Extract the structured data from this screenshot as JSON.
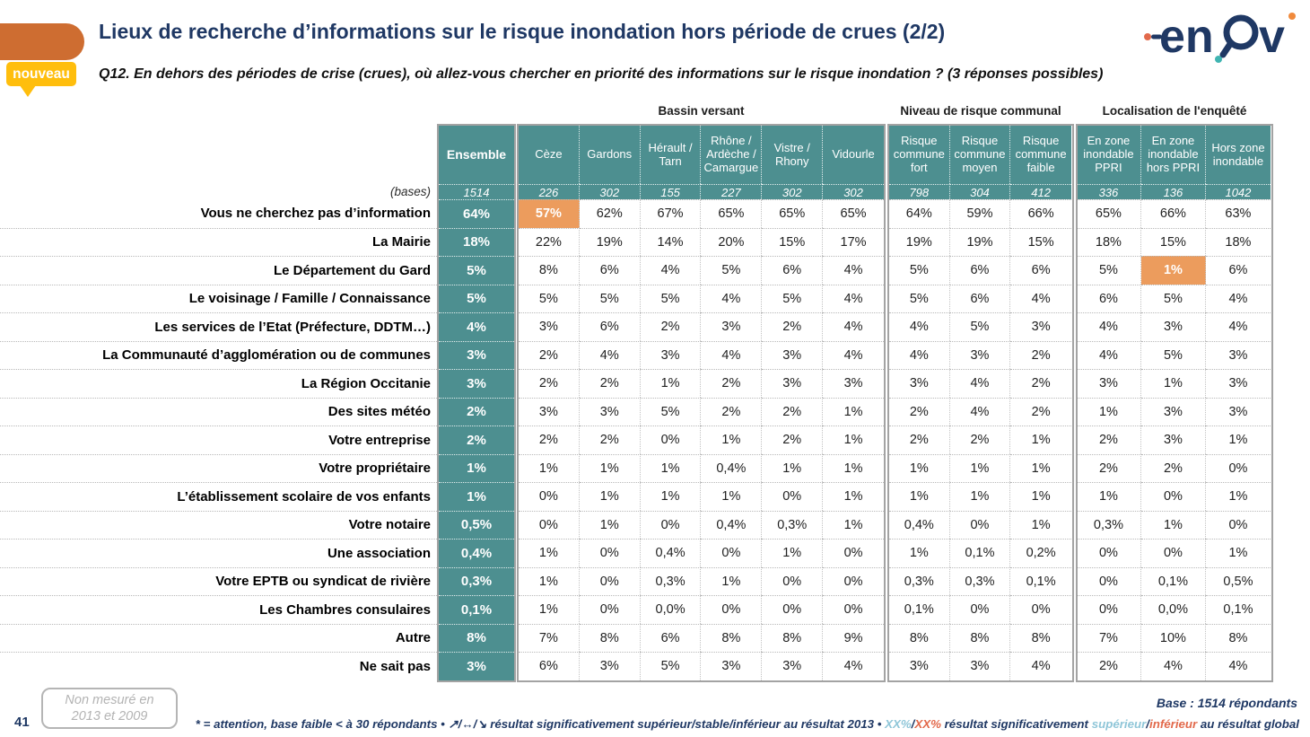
{
  "header": {
    "badge": "nouveau",
    "title": "Lieux de recherche d’informations sur le risque inondation hors période de crues (2/2)",
    "question": "Q12. En dehors des périodes de crise (crues), où allez-vous chercher en priorité des informations sur le risque inondation ? (3 réponses possibles)",
    "logo": "enov"
  },
  "chart_data": {
    "type": "table",
    "title": "Lieux de recherche d’informations sur le risque inondation hors période de crues (2/2)",
    "ensemble_label": "Ensemble",
    "bases_label": "(bases)",
    "ensemble_base": "1514",
    "groups": [
      {
        "label": "Bassin versant",
        "columns": [
          "Cèze",
          "Gardons",
          "Hérault / Tarn",
          "Rhône / Ardèche / Camargue",
          "Vistre / Rhony",
          "Vidourle"
        ],
        "bases": [
          "226",
          "302",
          "155",
          "227",
          "302",
          "302"
        ]
      },
      {
        "label": "Niveau de risque communal",
        "columns": [
          "Risque commune fort",
          "Risque commune moyen",
          "Risque commune faible"
        ],
        "bases": [
          "798",
          "304",
          "412"
        ]
      },
      {
        "label": "Localisation de l'enquêté",
        "columns": [
          "En zone inondable PPRI",
          "En zone inondable hors PPRI",
          "Hors zone inondable"
        ],
        "bases": [
          "336",
          "136",
          "1042"
        ]
      }
    ],
    "rows": [
      {
        "label": "Vous ne cherchez pas d’information",
        "ensemble": "64%",
        "values": [
          "57%",
          "62%",
          "67%",
          "65%",
          "65%",
          "65%",
          "64%",
          "59%",
          "66%",
          "65%",
          "66%",
          "63%"
        ],
        "highlight": [
          0
        ]
      },
      {
        "label": "La Mairie",
        "ensemble": "18%",
        "values": [
          "22%",
          "19%",
          "14%",
          "20%",
          "15%",
          "17%",
          "19%",
          "19%",
          "15%",
          "18%",
          "15%",
          "18%"
        ],
        "highlight": []
      },
      {
        "label": "Le Département du Gard",
        "ensemble": "5%",
        "values": [
          "8%",
          "6%",
          "4%",
          "5%",
          "6%",
          "4%",
          "5%",
          "6%",
          "6%",
          "5%",
          "1%",
          "6%"
        ],
        "highlight": [
          10
        ]
      },
      {
        "label": "Le voisinage / Famille / Connaissance",
        "ensemble": "5%",
        "values": [
          "5%",
          "5%",
          "5%",
          "4%",
          "5%",
          "4%",
          "5%",
          "6%",
          "4%",
          "6%",
          "5%",
          "4%"
        ],
        "highlight": []
      },
      {
        "label": "Les services de l’Etat (Préfecture, DDTM…)",
        "ensemble": "4%",
        "values": [
          "3%",
          "6%",
          "2%",
          "3%",
          "2%",
          "4%",
          "4%",
          "5%",
          "3%",
          "4%",
          "3%",
          "4%"
        ],
        "highlight": []
      },
      {
        "label": "La Communauté d’agglomération ou de communes",
        "ensemble": "3%",
        "values": [
          "2%",
          "4%",
          "3%",
          "4%",
          "3%",
          "4%",
          "4%",
          "3%",
          "2%",
          "4%",
          "5%",
          "3%"
        ],
        "highlight": []
      },
      {
        "label": "La Région Occitanie",
        "ensemble": "3%",
        "values": [
          "2%",
          "2%",
          "1%",
          "2%",
          "3%",
          "3%",
          "3%",
          "4%",
          "2%",
          "3%",
          "1%",
          "3%"
        ],
        "highlight": []
      },
      {
        "label": "Des sites météo",
        "ensemble": "2%",
        "values": [
          "3%",
          "3%",
          "5%",
          "2%",
          "2%",
          "1%",
          "2%",
          "4%",
          "2%",
          "1%",
          "3%",
          "3%"
        ],
        "highlight": []
      },
      {
        "label": "Votre entreprise",
        "ensemble": "2%",
        "values": [
          "2%",
          "2%",
          "0%",
          "1%",
          "2%",
          "1%",
          "2%",
          "2%",
          "1%",
          "2%",
          "3%",
          "1%"
        ],
        "highlight": []
      },
      {
        "label": "Votre propriétaire",
        "ensemble": "1%",
        "values": [
          "1%",
          "1%",
          "1%",
          "0,4%",
          "1%",
          "1%",
          "1%",
          "1%",
          "1%",
          "2%",
          "2%",
          "0%"
        ],
        "highlight": []
      },
      {
        "label": "L’établissement scolaire de vos enfants",
        "ensemble": "1%",
        "values": [
          "0%",
          "1%",
          "1%",
          "1%",
          "0%",
          "1%",
          "1%",
          "1%",
          "1%",
          "1%",
          "0%",
          "1%"
        ],
        "highlight": []
      },
      {
        "label": "Votre notaire",
        "ensemble": "0,5%",
        "values": [
          "0%",
          "1%",
          "0%",
          "0,4%",
          "0,3%",
          "1%",
          "0,4%",
          "0%",
          "1%",
          "0,3%",
          "1%",
          "0%"
        ],
        "highlight": []
      },
      {
        "label": "Une association",
        "ensemble": "0,4%",
        "values": [
          "1%",
          "0%",
          "0,4%",
          "0%",
          "1%",
          "0%",
          "1%",
          "0,1%",
          "0,2%",
          "0%",
          "0%",
          "1%"
        ],
        "highlight": []
      },
      {
        "label": "Votre EPTB ou syndicat de rivière",
        "ensemble": "0,3%",
        "values": [
          "1%",
          "0%",
          "0,3%",
          "1%",
          "0%",
          "0%",
          "0,3%",
          "0,3%",
          "0,1%",
          "0%",
          "0,1%",
          "0,5%"
        ],
        "highlight": []
      },
      {
        "label": "Les Chambres consulaires",
        "ensemble": "0,1%",
        "values": [
          "1%",
          "0%",
          "0,0%",
          "0%",
          "0%",
          "0%",
          "0,1%",
          "0%",
          "0%",
          "0%",
          "0,0%",
          "0,1%"
        ],
        "highlight": []
      },
      {
        "label": "Autre",
        "ensemble": "8%",
        "values": [
          "7%",
          "8%",
          "6%",
          "8%",
          "8%",
          "9%",
          "8%",
          "8%",
          "8%",
          "7%",
          "10%",
          "8%"
        ],
        "highlight": []
      },
      {
        "label": "Ne sait pas",
        "ensemble": "3%",
        "values": [
          "6%",
          "3%",
          "5%",
          "3%",
          "3%",
          "4%",
          "3%",
          "3%",
          "4%",
          "2%",
          "4%",
          "4%"
        ],
        "highlight": []
      }
    ]
  },
  "footer": {
    "page_number": "41",
    "note_line1": "Non mesuré en",
    "note_line2": "2013 et 2009",
    "base_text": "Base : 1514 répondants",
    "legend": {
      "part1": "* = attention, base faible < à 30 répondants • ",
      "arrows": "↗/↔/↘",
      "part2": " résultat significativement supérieur/stable/inférieur au résultat 2013 • ",
      "xx_sup": "XX%",
      "slash1": "/",
      "xx_inf": "XX%",
      "part3": " résultat significativement ",
      "sup_word": "supérieur",
      "slash2": "/",
      "inf_word": "inférieur",
      "part4": " au résultat global"
    }
  },
  "colors": {
    "teal": "#4D8F90",
    "highlight_orange": "#EC9C5D",
    "title_navy": "#1F3864",
    "shape_orange": "#CE6D31",
    "badge_yellow": "#FFBE0D",
    "superieur_blue": "#8FC6D8",
    "inferieur_orange": "#E2694B"
  }
}
